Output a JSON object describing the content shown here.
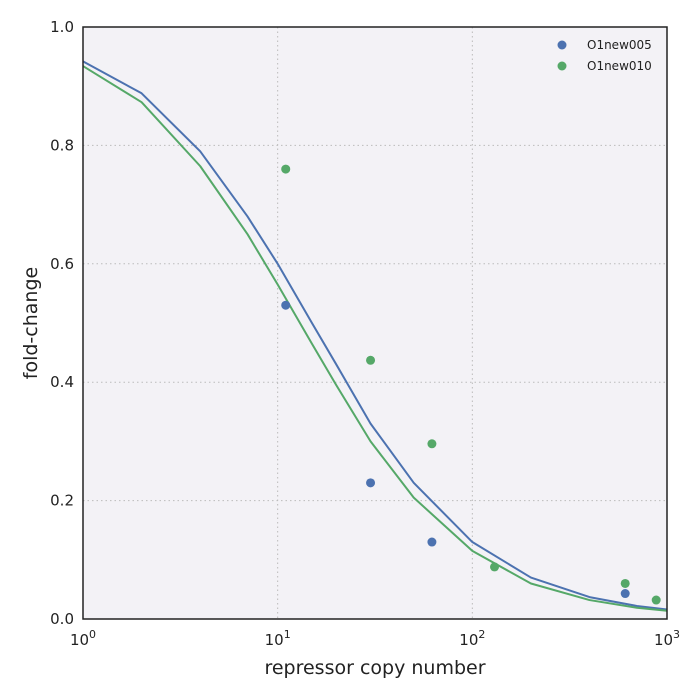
{
  "chart_data": {
    "type": "scatter",
    "xlabel": "repressor copy number",
    "ylabel": "fold-change",
    "xscale": "log",
    "xlim": [
      1,
      1000
    ],
    "ylim": [
      0.0,
      1.0
    ],
    "x_ticks": [
      {
        "value": 1,
        "base": "10",
        "exp": "0"
      },
      {
        "value": 10,
        "base": "10",
        "exp": "1"
      },
      {
        "value": 100,
        "base": "10",
        "exp": "2"
      },
      {
        "value": 1000,
        "base": "10",
        "exp": "3"
      }
    ],
    "y_ticks": [
      {
        "value": 0.0,
        "label": "0.0"
      },
      {
        "value": 0.2,
        "label": "0.2"
      },
      {
        "value": 0.4,
        "label": "0.4"
      },
      {
        "value": 0.6,
        "label": "0.6"
      },
      {
        "value": 0.8,
        "label": "0.8"
      },
      {
        "value": 1.0,
        "label": "1.0"
      }
    ],
    "grid": true,
    "legend_position": "top-right",
    "series": [
      {
        "name": "O1new005",
        "color": "#4c72b0",
        "points": [
          {
            "x": 11,
            "y": 0.53
          },
          {
            "x": 30,
            "y": 0.23
          },
          {
            "x": 62,
            "y": 0.13
          },
          {
            "x": 610,
            "y": 0.043
          }
        ],
        "fit_curve": [
          {
            "x": 1,
            "y": 0.942
          },
          {
            "x": 2,
            "y": 0.888
          },
          {
            "x": 4,
            "y": 0.79
          },
          {
            "x": 7,
            "y": 0.68
          },
          {
            "x": 10,
            "y": 0.6
          },
          {
            "x": 15,
            "y": 0.5
          },
          {
            "x": 20,
            "y": 0.43
          },
          {
            "x": 30,
            "y": 0.33
          },
          {
            "x": 50,
            "y": 0.23
          },
          {
            "x": 100,
            "y": 0.13
          },
          {
            "x": 200,
            "y": 0.07
          },
          {
            "x": 400,
            "y": 0.037
          },
          {
            "x": 700,
            "y": 0.022
          },
          {
            "x": 1000,
            "y": 0.016
          }
        ]
      },
      {
        "name": "O1new010",
        "color": "#55a868",
        "points": [
          {
            "x": 11,
            "y": 0.76
          },
          {
            "x": 30,
            "y": 0.437
          },
          {
            "x": 62,
            "y": 0.296
          },
          {
            "x": 130,
            "y": 0.088
          },
          {
            "x": 610,
            "y": 0.06
          },
          {
            "x": 880,
            "y": 0.032
          }
        ],
        "fit_curve": [
          {
            "x": 1,
            "y": 0.934
          },
          {
            "x": 2,
            "y": 0.873
          },
          {
            "x": 4,
            "y": 0.765
          },
          {
            "x": 7,
            "y": 0.65
          },
          {
            "x": 10,
            "y": 0.565
          },
          {
            "x": 15,
            "y": 0.465
          },
          {
            "x": 20,
            "y": 0.395
          },
          {
            "x": 30,
            "y": 0.3
          },
          {
            "x": 50,
            "y": 0.205
          },
          {
            "x": 100,
            "y": 0.115
          },
          {
            "x": 200,
            "y": 0.06
          },
          {
            "x": 400,
            "y": 0.032
          },
          {
            "x": 700,
            "y": 0.019
          },
          {
            "x": 1000,
            "y": 0.014
          }
        ]
      }
    ],
    "colors": {
      "plot_background": "#f3f2f6",
      "grid": "#bbbbbb",
      "frame": "#222222"
    }
  }
}
